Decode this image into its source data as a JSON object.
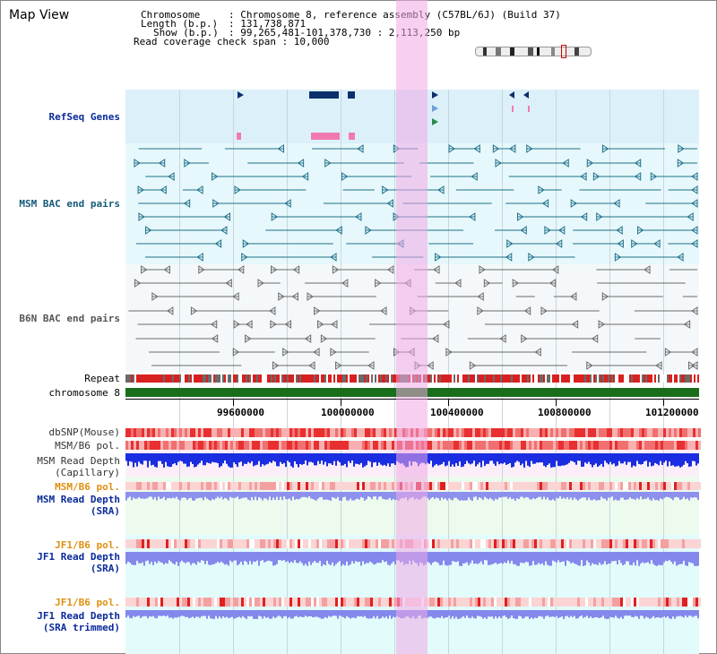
{
  "page": {
    "title": "Map View"
  },
  "info": {
    "chromosome_key": "Chromosome",
    "chromosome_val": ": Chromosome 8, reference assembly (C57BL/6J) (Build 37)",
    "length_key": "Length (b.p.)",
    "length_val": ": 131,738,871",
    "show_key": "Show (b.p.)",
    "show_val": ": 99,265,481-101,378,730 : 2,113,250 bp",
    "coverage_line": "Read coverage check span : 10,000"
  },
  "tracks": {
    "refseq": "RefSeq Genes",
    "msm_bac": "MSM BAC end pairs",
    "b6n_bac": "B6N BAC end pairs",
    "repeat": "Repeat",
    "chromosome": "chromosome 8",
    "dbsnp": "dbSNP(Mouse)",
    "msm_b6_pol_1": "MSM/B6 pol.",
    "msm_depth_cap_1": "MSM Read Depth",
    "msm_depth_cap_2": "(Capillary)",
    "msm_b6_pol_2": "MSM/B6 pol.",
    "msm_depth_sra_1": "MSM Read Depth",
    "msm_depth_sra_2": "(SRA)",
    "jf1_b6_pol_1": "JF1/B6 pol.",
    "jf1_depth_sra_1": "JF1 Read Depth",
    "jf1_depth_sra_2": "(SRA)",
    "jf1_b6_pol_2": "JF1/B6 pol.",
    "jf1_depth_trim_1": "JF1 Read Depth",
    "jf1_depth_trim_2": "(SRA trimmed)"
  },
  "scale": {
    "labels": [
      "99600000",
      "100000000",
      "100400000",
      "100800000",
      "101200000"
    ]
  },
  "colors": {
    "refseq_bg": "#dcf0fa",
    "bac_bg": "#e6f8fb",
    "b6n_bg": "#f4f8fa",
    "highlight": "#f2b7ee",
    "chromosome_band": "#1a6e1a",
    "depth_capillary": "#1b2de0",
    "depth_sra": "#8e90ee",
    "pol_red": "#e84040"
  }
}
